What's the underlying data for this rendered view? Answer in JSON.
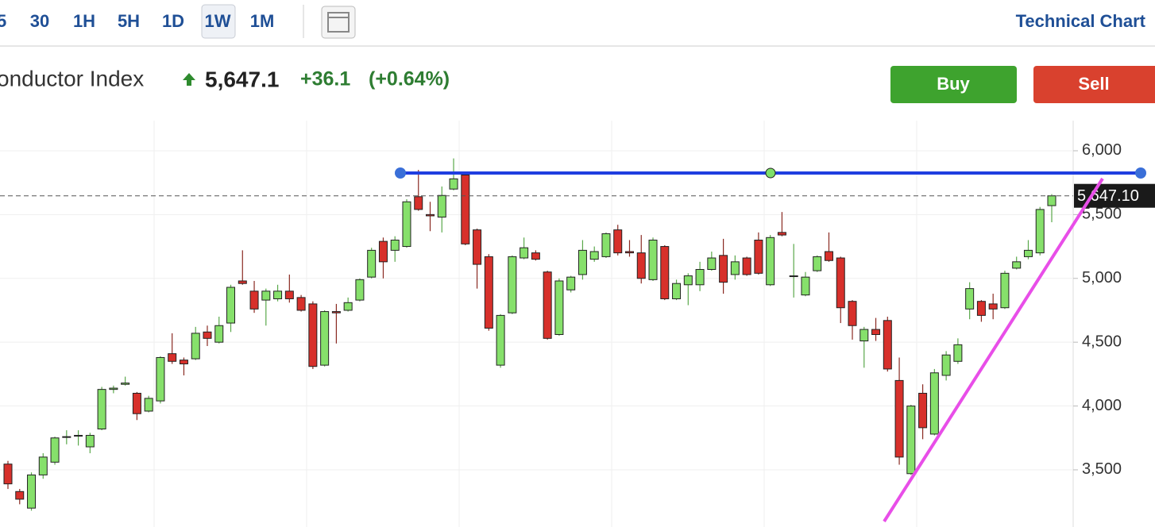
{
  "toolbar": {
    "intervals": [
      "5",
      "30",
      "1H",
      "5H",
      "1D",
      "1W",
      "1M"
    ],
    "link": "Technical Chart"
  },
  "actions": {
    "buy": "Buy",
    "sell": "Sell"
  },
  "chart_data": {
    "type": "candlestick",
    "title": "onductor Index",
    "price": "5,647.1",
    "change": "+36.1",
    "change_pct": "(+0.64%)",
    "last_label": "5,647.10",
    "up_color": "#86e06b",
    "down_color": "#d7302b",
    "grid": true,
    "ylim": [
      3052,
      6236
    ],
    "yticks": [
      {
        "value": 3500,
        "label": "3,500"
      },
      {
        "value": 4000,
        "label": "4,000"
      },
      {
        "value": 4500,
        "label": "4,500"
      },
      {
        "value": 5000,
        "label": "5,000"
      },
      {
        "value": 5500,
        "label": "5,500"
      },
      {
        "value": 6000,
        "label": "6,000"
      }
    ],
    "open": [
      3545,
      3330,
      3200,
      3460,
      3560,
      3760,
      3770,
      3680,
      3820,
      4130,
      4170,
      4100,
      3960,
      4040,
      4410,
      4360,
      4370,
      4580,
      4500,
      4650,
      4980,
      4900,
      4830,
      4840,
      4900,
      4850,
      4800,
      4320,
      4740,
      4750,
      4830,
      5010,
      5290,
      5220,
      5250,
      5640,
      5500,
      5480,
      5700,
      5810,
      5380,
      5170,
      4320,
      4730,
      5160,
      5200,
      5050,
      4560,
      4910,
      5030,
      5150,
      5170,
      5380,
      5210,
      5200,
      4990,
      5250,
      4840,
      4950,
      4950,
      5070,
      5180,
      5030,
      5160,
      5300,
      4950,
      5360,
      5020,
      4870,
      5060,
      5210,
      5160,
      4820,
      4510,
      4600,
      4670,
      4200,
      3470,
      4100,
      3780,
      4240,
      4350,
      4760,
      4820,
      4800,
      4770,
      5080,
      5170,
      5200,
      5570
    ],
    "high": [
      3570,
      3350,
      3480,
      3630,
      3760,
      3810,
      3810,
      3790,
      4150,
      4160,
      4230,
      4110,
      4080,
      4390,
      4570,
      4380,
      4620,
      4630,
      4700,
      4950,
      5220,
      4980,
      4920,
      4950,
      5030,
      4870,
      4820,
      4750,
      4800,
      4850,
      5000,
      5240,
      5320,
      5330,
      5620,
      5850,
      5600,
      5720,
      5940,
      5830,
      5390,
      5190,
      4720,
      5180,
      5320,
      5220,
      5060,
      5000,
      5020,
      5300,
      5250,
      5360,
      5420,
      5300,
      5340,
      5320,
      5260,
      4990,
      5040,
      5130,
      5210,
      5310,
      5180,
      5170,
      5360,
      5340,
      5520,
      5270,
      5050,
      5180,
      5360,
      5170,
      4830,
      4620,
      4690,
      4700,
      4380,
      4010,
      4170,
      4290,
      4430,
      4530,
      4970,
      4830,
      4880,
      5060,
      5170,
      5300,
      5560,
      5660
    ],
    "low": [
      3350,
      3230,
      3180,
      3430,
      3540,
      3700,
      3690,
      3630,
      3810,
      4100,
      4160,
      3890,
      3950,
      4020,
      4330,
      4240,
      4360,
      4470,
      4490,
      4580,
      4950,
      4730,
      4630,
      4820,
      4810,
      4740,
      4290,
      4310,
      4490,
      4740,
      4820,
      5000,
      5000,
      5130,
      5240,
      5530,
      5370,
      5360,
      5690,
      5260,
      4920,
      4590,
      4300,
      4720,
      5150,
      5140,
      4520,
      4550,
      4890,
      4990,
      5130,
      5160,
      5180,
      5170,
      4960,
      4980,
      4830,
      4830,
      4790,
      4900,
      5060,
      4880,
      4990,
      5020,
      5030,
      4940,
      5330,
      4850,
      4860,
      5050,
      5130,
      4650,
      4520,
      4300,
      4510,
      4270,
      3540,
      3460,
      3740,
      3770,
      4200,
      4330,
      4680,
      4660,
      4680,
      4760,
      5070,
      5150,
      5180,
      5440
    ],
    "close": [
      3390,
      3270,
      3460,
      3600,
      3750,
      3760,
      3770,
      3770,
      4130,
      4140,
      4180,
      3940,
      4060,
      4380,
      4350,
      4330,
      4570,
      4530,
      4630,
      4930,
      4960,
      4760,
      4900,
      4900,
      4840,
      4750,
      4310,
      4740,
      4730,
      4810,
      4990,
      5220,
      5130,
      5300,
      5600,
      5540,
      5490,
      5650,
      5780,
      5270,
      5110,
      4610,
      4710,
      5170,
      5240,
      5150,
      4530,
      4980,
      5010,
      5220,
      5210,
      5350,
      5200,
      5200,
      5000,
      5300,
      4840,
      4960,
      5020,
      5070,
      5160,
      4970,
      5130,
      5030,
      5040,
      5320,
      5340,
      5020,
      5010,
      5170,
      5140,
      4770,
      4630,
      4600,
      4560,
      4290,
      3600,
      4000,
      3830,
      4260,
      4400,
      4480,
      4920,
      4710,
      4760,
      5040,
      5130,
      5220,
      5540,
      5647.1
    ]
  }
}
